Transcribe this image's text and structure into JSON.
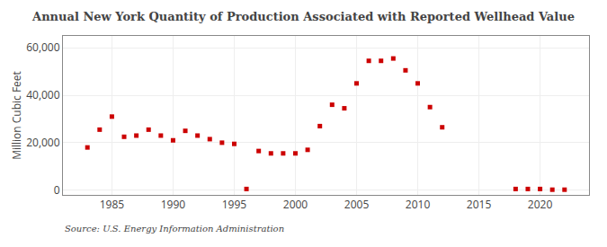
{
  "chart_data": {
    "type": "scatter",
    "title": "Annual New York Quantity of Production Associated with Reported Wellhead Value",
    "ylabel": "Million Cubic Feet",
    "source": "Source: U.S. Energy Information Administration",
    "x": [
      1983,
      1984,
      1985,
      1986,
      1987,
      1988,
      1989,
      1990,
      1991,
      1992,
      1993,
      1994,
      1995,
      1996,
      1997,
      1998,
      1999,
      2000,
      2001,
      2002,
      2003,
      2004,
      2005,
      2006,
      2007,
      2008,
      2009,
      2010,
      2011,
      2012,
      2018,
      2019,
      2020,
      2021,
      2022
    ],
    "values": [
      18000,
      25500,
      31000,
      22500,
      23000,
      25500,
      23000,
      21000,
      25000,
      23000,
      21500,
      20000,
      19500,
      500,
      16500,
      15500,
      15500,
      15500,
      17000,
      27000,
      36000,
      34500,
      45000,
      54500,
      54500,
      55500,
      50500,
      45000,
      35000,
      26500,
      500,
      500,
      500,
      200,
      200
    ],
    "color": "#cc0000",
    "marker": "square",
    "xlim": [
      1981,
      2024
    ],
    "ylim": [
      -2000,
      65000
    ],
    "xticks": [
      1985,
      1990,
      1995,
      2000,
      2005,
      2010,
      2015,
      2020
    ],
    "yticks": [
      0,
      {
        "value": 20000,
        "label": "20,000"
      },
      {
        "value": 40000,
        "label": "40,000"
      },
      {
        "value": 60000,
        "label": "60,000"
      }
    ],
    "grid": true
  }
}
